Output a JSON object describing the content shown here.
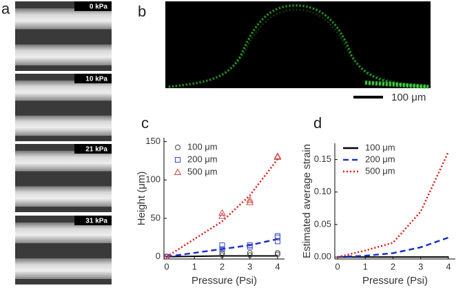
{
  "panels": {
    "a": {
      "label": "a",
      "tiles": [
        "0 kPa",
        "10 kPa",
        "21 kPa",
        "31 kPa"
      ]
    },
    "b": {
      "label": "b",
      "scale_bar": "100 μm"
    }
  },
  "chart_data": [
    {
      "type": "scatter",
      "panel_label": "c",
      "ylabel": "Height (μm)",
      "xlabel": "Pressure (Psi)",
      "xlim": [
        -0.1,
        4.25
      ],
      "xticks": [
        0,
        1,
        2,
        3,
        4
      ],
      "ylim": [
        -3,
        155
      ],
      "yticks": [
        0,
        50,
        100,
        150
      ],
      "series": [
        {
          "name": "100 μm",
          "color": "#444444",
          "marker": "circle",
          "x": [
            0,
            2,
            2,
            3,
            3,
            4,
            4
          ],
          "values": [
            0,
            2,
            5,
            2,
            5,
            3,
            5
          ]
        },
        {
          "name": "200 μm",
          "color": "#3344cc",
          "marker": "square",
          "x": [
            0,
            2,
            2,
            3,
            3,
            4,
            4,
            4
          ],
          "values": [
            0,
            10,
            15,
            13,
            15,
            20,
            25,
            27
          ]
        },
        {
          "name": "500 μm",
          "color": "#cc4444",
          "marker": "triangle",
          "x": [
            0,
            2,
            2,
            3,
            3,
            4,
            4
          ],
          "values": [
            0,
            53,
            57,
            71,
            74,
            130,
            131
          ]
        }
      ],
      "lines": [
        {
          "color": "#000000",
          "style": "solid",
          "x": [
            0,
            2,
            3,
            4
          ],
          "values": [
            0,
            1,
            1,
            1
          ]
        },
        {
          "color": "#1a2ecc",
          "style": "dashed",
          "x": [
            0,
            2,
            3,
            4
          ],
          "values": [
            0,
            10,
            15,
            23
          ]
        },
        {
          "color": "#dd1111",
          "style": "dotted",
          "x": [
            0,
            2,
            3,
            4
          ],
          "values": [
            0,
            46,
            80,
            127
          ]
        }
      ]
    },
    {
      "type": "line",
      "panel_label": "d",
      "ylabel": "Estimated average strain",
      "xlabel": "Pressure (Psi)",
      "xlim": [
        -0.1,
        4.25
      ],
      "xticks": [
        0,
        1,
        2,
        3,
        4
      ],
      "ylim": [
        -0.003,
        0.175
      ],
      "yticks": [
        {
          "value": 0,
          "label": "0.00"
        },
        {
          "value": 0.05,
          "label": "0.05"
        },
        {
          "value": 0.1,
          "label": "0.10"
        },
        {
          "value": 0.15,
          "label": "0.15"
        }
      ],
      "series": [
        {
          "name": "100 μm",
          "color": "#000000",
          "style": "solid",
          "x": [
            0,
            1,
            2,
            3,
            4
          ],
          "values": [
            0,
            0,
            0,
            0,
            0
          ]
        },
        {
          "name": "200 μm",
          "color": "#1a2ecc",
          "style": "dashed",
          "x": [
            0,
            1,
            2,
            3,
            4
          ],
          "values": [
            0,
            0.002,
            0.006,
            0.015,
            0.03
          ]
        },
        {
          "name": "500 μm",
          "color": "#dd1111",
          "style": "dotted",
          "x": [
            0,
            1,
            2,
            3,
            4
          ],
          "values": [
            0,
            0.01,
            0.022,
            0.07,
            0.162
          ]
        }
      ]
    }
  ]
}
